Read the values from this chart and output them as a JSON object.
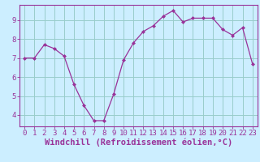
{
  "x": [
    0,
    1,
    2,
    3,
    4,
    5,
    6,
    7,
    8,
    9,
    10,
    11,
    12,
    13,
    14,
    15,
    16,
    17,
    18,
    19,
    20,
    21,
    22,
    23
  ],
  "y": [
    7.0,
    7.0,
    7.7,
    7.5,
    7.1,
    5.6,
    4.5,
    3.7,
    3.7,
    5.1,
    6.9,
    7.8,
    8.4,
    8.7,
    9.2,
    9.5,
    8.9,
    9.1,
    9.1,
    9.1,
    8.5,
    8.2,
    8.6,
    6.7
  ],
  "line_color": "#993399",
  "marker": "D",
  "marker_size": 2.0,
  "bg_color": "#cceeff",
  "grid_color": "#99cccc",
  "axis_color": "#993399",
  "xlabel": "Windchill (Refroidissement éolien,°C)",
  "xlim": [
    -0.5,
    23.5
  ],
  "ylim": [
    3.4,
    9.8
  ],
  "yticks": [
    4,
    5,
    6,
    7,
    8,
    9
  ],
  "xticks": [
    0,
    1,
    2,
    3,
    4,
    5,
    6,
    7,
    8,
    9,
    10,
    11,
    12,
    13,
    14,
    15,
    16,
    17,
    18,
    19,
    20,
    21,
    22,
    23
  ],
  "tick_fontsize": 6.5,
  "label_fontsize": 7.5
}
